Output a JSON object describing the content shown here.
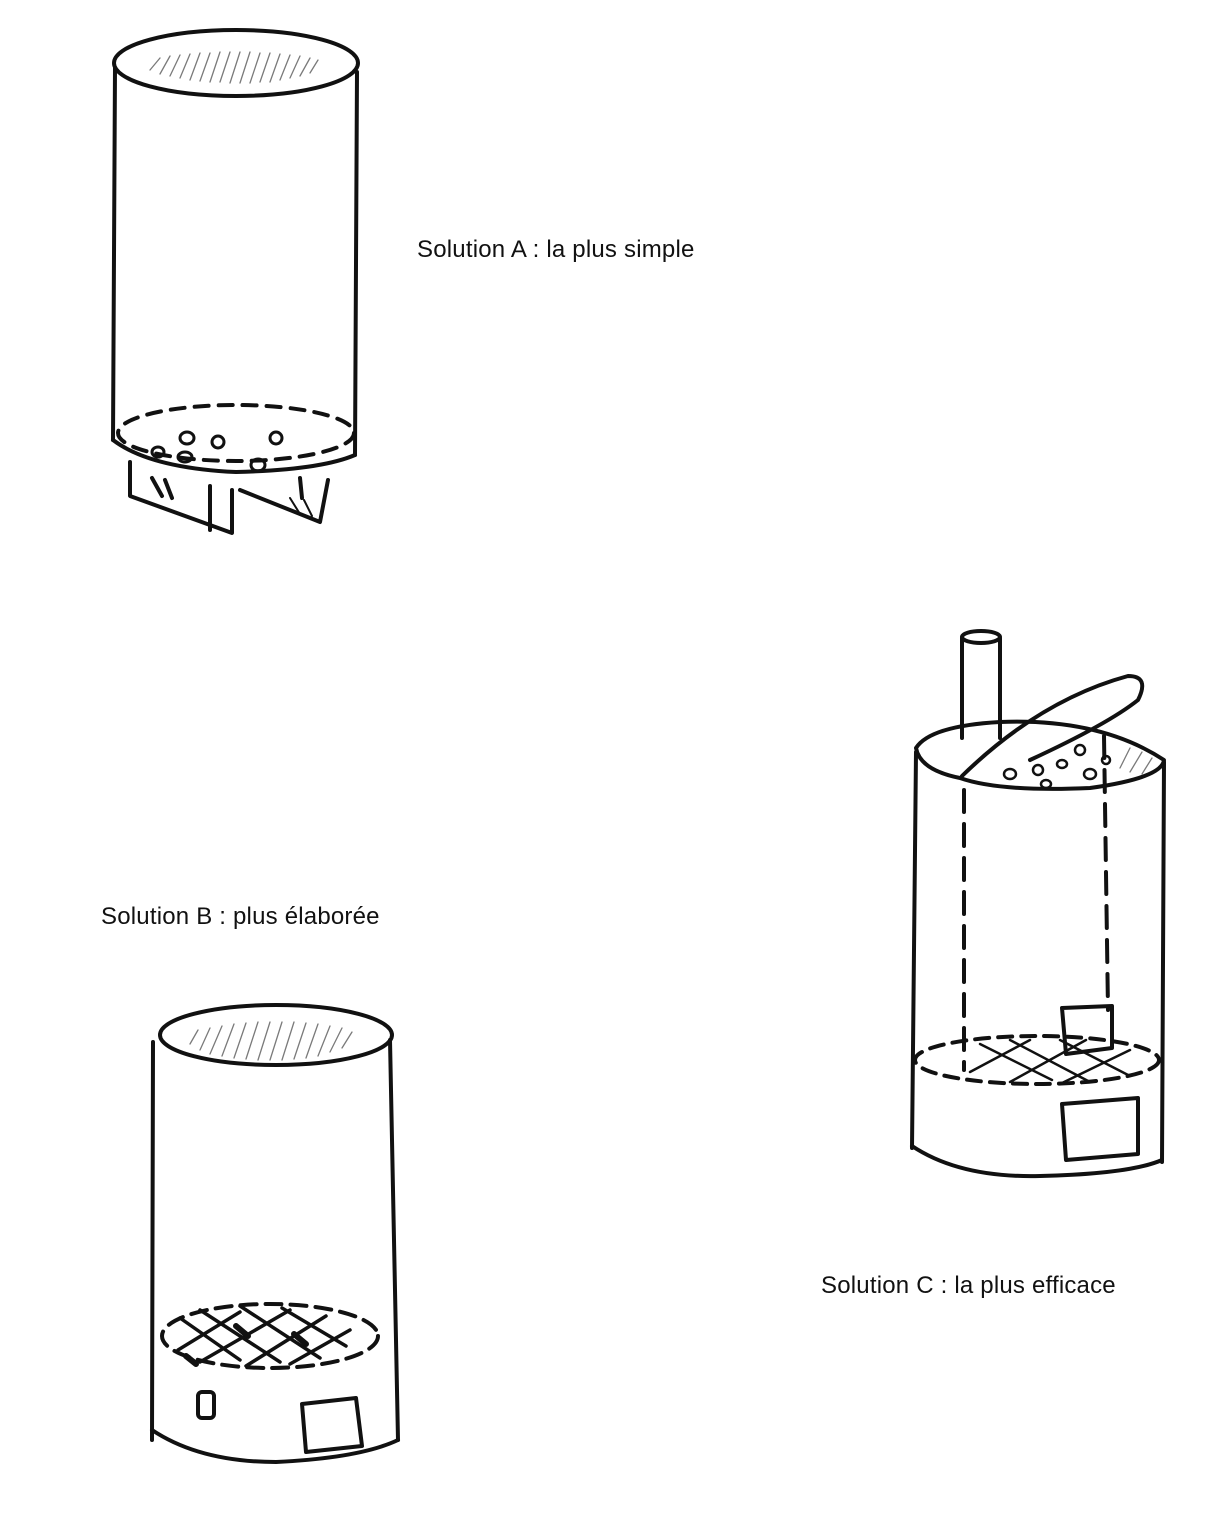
{
  "captions": {
    "solution_a": "Solution A : la plus simple",
    "solution_b": "Solution B : plus élaborée",
    "solution_c": "Solution C : la plus efficace"
  },
  "colors": {
    "ink": "#111111",
    "shading": "#7a7a7a",
    "background": "#ffffff"
  }
}
